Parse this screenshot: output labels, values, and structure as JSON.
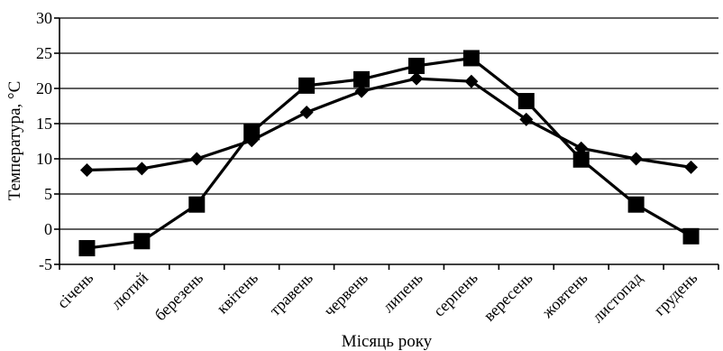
{
  "chart_data": {
    "type": "line",
    "ylabel": "Температура, °С",
    "xlabel": "Місяць року",
    "ylim": [
      -5,
      30
    ],
    "yticks": [
      -5,
      0,
      5,
      10,
      15,
      20,
      25,
      30
    ],
    "grid": true,
    "categories": [
      "січень",
      "лютий",
      "березень",
      "квітень",
      "травень",
      "червень",
      "липень",
      "серпень",
      "вересень",
      "жовтень",
      "листопад",
      "грудень"
    ],
    "series": [
      {
        "marker": "diamond",
        "values": [
          8.4,
          8.6,
          10.0,
          12.6,
          16.6,
          19.6,
          21.4,
          21.0,
          15.6,
          11.5,
          10.0,
          8.8
        ]
      },
      {
        "marker": "square",
        "values": [
          -2.7,
          -1.7,
          3.5,
          13.8,
          20.4,
          21.3,
          23.2,
          24.3,
          18.2,
          9.9,
          3.5,
          -1.0
        ]
      }
    ]
  }
}
